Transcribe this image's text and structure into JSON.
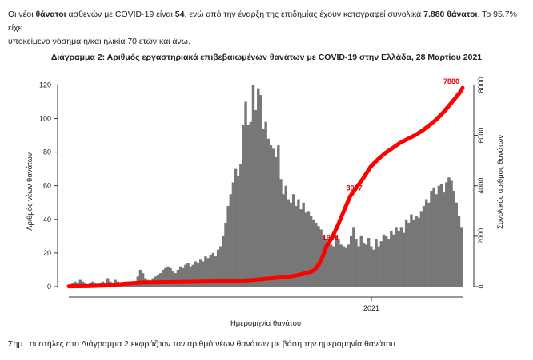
{
  "text": {
    "line1_a": "Οι νέοι ",
    "line1_b": "θάνατοι",
    "line1_c": " ασθενών με COVID-19 είναι ",
    "line1_d": "54",
    "line1_e": ", ενώ από την έναρξη της επιδημίας έχουν καταγραφεί συνολικά ",
    "line1_f": "7.880 θάνατοι",
    "line1_g": ".  Το 95.7% είχε",
    "line2": "υποκείμενο νόσημα ή/και ηλικία 70 ετών και άνω.",
    "note": "Σημ.: οι στήλες στο Διάγραμμα 2 εκφράζουν τον αριθμό νέων θανάτων με βάση την ημερομηνία θανάτου"
  },
  "chart_data": {
    "type": "bar",
    "title": "Διάγραμμα 2: Αριθμός εργαστηριακά επιβεβαιωμένων θανάτων με COVID-19 στην Ελλάδα, 28 Μαρτίου 2021",
    "xlabel": "Ημερομηνία θανάτου",
    "ylabel": "Αριθμός νέων θανάτων",
    "y2label": "Συνολικός αριθμός θανάτων",
    "x_ticks": [
      "2021"
    ],
    "y_ticks": [
      0,
      20,
      40,
      60,
      80,
      100,
      120
    ],
    "y2_ticks": [
      0,
      2000,
      4000,
      6000,
      8000
    ],
    "ylim": [
      0,
      124
    ],
    "y2lim": [
      0,
      8267
    ],
    "period": "2020-03 to 2021-03-28",
    "bar_color": "#777777",
    "line_color": "#ff0000",
    "bars_daily_new_deaths": [
      1,
      2,
      3,
      2,
      4,
      3,
      2,
      1,
      2,
      3,
      2,
      1,
      2,
      3,
      2,
      5,
      3,
      2,
      4,
      3,
      2,
      1,
      2,
      3,
      1,
      2,
      3,
      6,
      10,
      8,
      5,
      4,
      3,
      5,
      6,
      7,
      8,
      10,
      11,
      12,
      11,
      9,
      8,
      10,
      12,
      11,
      13,
      14,
      12,
      13,
      15,
      14,
      16,
      15,
      18,
      17,
      19,
      20,
      18,
      22,
      24,
      30,
      38,
      48,
      55,
      62,
      70,
      66,
      73,
      96,
      110,
      96,
      98,
      120,
      105,
      118,
      114,
      94,
      98,
      88,
      84,
      82,
      77,
      84,
      64,
      55,
      60,
      52,
      50,
      55,
      48,
      52,
      46,
      50,
      44,
      45,
      42,
      40,
      38,
      36,
      34,
      30,
      28,
      26,
      25,
      24,
      30,
      28,
      25,
      24,
      23,
      25,
      30,
      35,
      28,
      24,
      30,
      26,
      25,
      29,
      24,
      22,
      28,
      24,
      27,
      31,
      30,
      28,
      33,
      31,
      35,
      33,
      35,
      32,
      40,
      38,
      43,
      40,
      42,
      41,
      45,
      48,
      52,
      50,
      57,
      59,
      55,
      60,
      61,
      56,
      62,
      65,
      63,
      57,
      50,
      42,
      35
    ],
    "cumulative_total_deaths": [
      [
        0,
        12
      ],
      [
        0.05,
        20
      ],
      [
        0.1,
        45
      ],
      [
        0.15,
        110
      ],
      [
        0.2,
        160
      ],
      [
        0.3,
        180
      ],
      [
        0.35,
        192
      ],
      [
        0.45,
        220
      ],
      [
        0.5,
        260
      ],
      [
        0.55,
        330
      ],
      [
        0.6,
        400
      ],
      [
        0.63,
        480
      ],
      [
        0.66,
        600
      ],
      [
        0.67,
        700
      ],
      [
        0.68,
        900
      ],
      [
        0.69,
        1200
      ],
      [
        0.7,
        1600
      ],
      [
        0.715,
        1938
      ],
      [
        0.73,
        2400
      ],
      [
        0.75,
        3100
      ],
      [
        0.765,
        3600
      ],
      [
        0.78,
        3907
      ],
      [
        0.8,
        4300
      ],
      [
        0.82,
        4750
      ],
      [
        0.84,
        5050
      ],
      [
        0.86,
        5300
      ],
      [
        0.88,
        5500
      ],
      [
        0.9,
        5700
      ],
      [
        0.92,
        5850
      ],
      [
        0.94,
        6000
      ],
      [
        0.96,
        6180
      ],
      [
        0.98,
        6400
      ],
      [
        1.0,
        6650
      ],
      [
        1.02,
        6950
      ],
      [
        1.04,
        7300
      ],
      [
        1.06,
        7650
      ],
      [
        1.07,
        7880
      ]
    ],
    "line_labels": [
      "1938",
      "3907",
      "7880"
    ]
  }
}
